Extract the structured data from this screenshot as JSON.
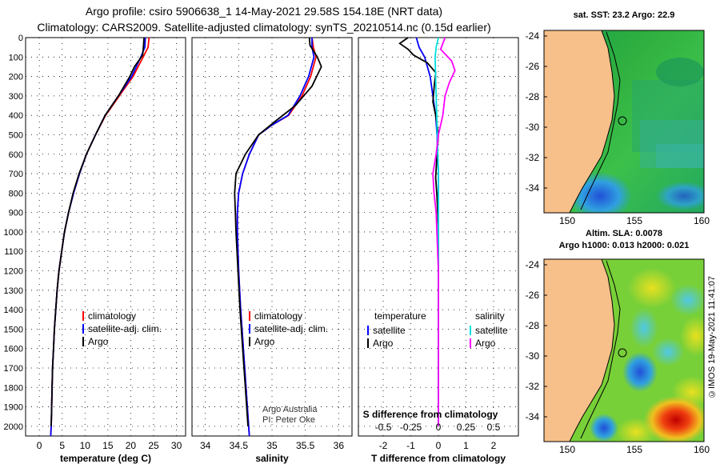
{
  "header": {
    "line1": "Argo profile: csiro 5906638_1 14-May-2021 29.58S 154.18E (NRT data)",
    "line2": "Climatology: CARS2009. Satellite-adjusted climatology: synTS_20210514.nc (0.15d earlier)"
  },
  "map_top": {
    "title": "sat. SST: 23.2 Argo: 22.9",
    "lat_ticks": [
      "-24",
      "-26",
      "-28",
      "-30",
      "-32",
      "-34"
    ],
    "lon_ticks": [
      "150",
      "155",
      "160"
    ]
  },
  "map_bottom": {
    "title1": "Altim. SLA: 0.0078",
    "title2": "Argo h1000: 0.013 h2000: 0.021",
    "lat_ticks": [
      "-24",
      "-26",
      "-28",
      "-30",
      "-32",
      "-34"
    ],
    "lon_ticks": [
      "150",
      "155",
      "160"
    ]
  },
  "stamp": "©IMOS 19-May-2021 11:41:07",
  "credit": {
    "line1": "Argo Australia",
    "line2": "PI: Peter Oke"
  },
  "colors": {
    "climatology": "#ff0000",
    "satellite": "#0000ff",
    "argo": "#000000",
    "sat_salinity": "#00e0e0",
    "argo_salinity": "#ff00ff"
  },
  "chart_data": [
    {
      "type": "line",
      "title": "",
      "xlabel": "temperature (deg C)",
      "ylabel": "",
      "xlim": [
        -3,
        32
      ],
      "ylim": [
        2050,
        0
      ],
      "x_ticks": [
        "0",
        "5",
        "10",
        "15",
        "20",
        "25",
        "30"
      ],
      "y_ticks": [
        "0",
        "100",
        "200",
        "300",
        "400",
        "500",
        "600",
        "700",
        "800",
        "900",
        "1000",
        "1100",
        "1200",
        "1300",
        "1400",
        "1500",
        "1600",
        "1700",
        "1800",
        "1900",
        "2000"
      ],
      "legend": [
        "climatology",
        "satellite-adj. clim.",
        "Argo"
      ],
      "series": [
        {
          "name": "climatology",
          "points": [
            [
              24,
              0
            ],
            [
              23.8,
              50
            ],
            [
              22.7,
              100
            ],
            [
              20.5,
              200
            ],
            [
              17.5,
              300
            ],
            [
              14.5,
              400
            ],
            [
              12.3,
              500
            ],
            [
              10.3,
              600
            ],
            [
              8.8,
              700
            ],
            [
              7.5,
              800
            ],
            [
              6.4,
              900
            ],
            [
              5.5,
              1000
            ],
            [
              4.9,
              1100
            ],
            [
              4.3,
              1200
            ],
            [
              3.9,
              1300
            ],
            [
              3.6,
              1400
            ],
            [
              3.3,
              1500
            ],
            [
              3.1,
              1600
            ],
            [
              2.9,
              1700
            ],
            [
              2.8,
              1800
            ],
            [
              2.7,
              1900
            ],
            [
              2.6,
              2000
            ],
            [
              2.5,
              2050
            ]
          ]
        },
        {
          "name": "satellite-adj. clim.",
          "points": [
            [
              23.2,
              0
            ],
            [
              23.1,
              50
            ],
            [
              22.2,
              100
            ],
            [
              20.2,
              200
            ],
            [
              17.3,
              300
            ],
            [
              14.4,
              400
            ],
            [
              12.3,
              500
            ],
            [
              10.3,
              600
            ],
            [
              8.8,
              700
            ],
            [
              7.5,
              800
            ],
            [
              6.4,
              900
            ],
            [
              5.5,
              1000
            ],
            [
              4.9,
              1100
            ],
            [
              4.3,
              1200
            ],
            [
              3.9,
              1300
            ],
            [
              3.6,
              1400
            ],
            [
              3.3,
              1500
            ],
            [
              3.1,
              1600
            ],
            [
              2.9,
              1700
            ],
            [
              2.8,
              1800
            ],
            [
              2.7,
              1900
            ],
            [
              2.6,
              2000
            ],
            [
              2.5,
              2050
            ]
          ]
        },
        {
          "name": "Argo",
          "points": [
            [
              22.9,
              0
            ],
            [
              22.8,
              40
            ],
            [
              22.6,
              90
            ],
            [
              20.8,
              150
            ],
            [
              19.8,
              200
            ],
            [
              17.3,
              300
            ],
            [
              14.4,
              400
            ],
            [
              12.3,
              500
            ],
            [
              10.3,
              600
            ],
            [
              8.7,
              700
            ],
            [
              7.4,
              800
            ],
            [
              6.4,
              900
            ],
            [
              5.5,
              1000
            ],
            [
              4.9,
              1100
            ],
            [
              4.3,
              1200
            ],
            [
              3.9,
              1300
            ],
            [
              3.6,
              1400
            ],
            [
              3.3,
              1500
            ],
            [
              3.1,
              1600
            ],
            [
              2.9,
              1700
            ],
            [
              2.8,
              1800
            ],
            [
              2.7,
              1900
            ],
            [
              2.6,
              2000
            ]
          ]
        }
      ]
    },
    {
      "type": "line",
      "title": "",
      "xlabel": "salinity",
      "ylabel": "",
      "xlim": [
        33.8,
        36.2
      ],
      "ylim": [
        2050,
        0
      ],
      "x_ticks": [
        "34",
        "34.5",
        "35",
        "35.5",
        "36"
      ],
      "legend": [
        "climatology",
        "satellite-adj. clim.",
        "Argo"
      ],
      "series": [
        {
          "name": "climatology",
          "points": [
            [
              35.6,
              0
            ],
            [
              35.62,
              50
            ],
            [
              35.66,
              100
            ],
            [
              35.58,
              200
            ],
            [
              35.45,
              300
            ],
            [
              35.25,
              400
            ],
            [
              35.0,
              450
            ],
            [
              34.8,
              500
            ],
            [
              34.66,
              600
            ],
            [
              34.56,
              700
            ],
            [
              34.5,
              800
            ],
            [
              34.48,
              900
            ],
            [
              34.48,
              1000
            ],
            [
              34.5,
              1200
            ],
            [
              34.53,
              1400
            ],
            [
              34.57,
              1600
            ],
            [
              34.61,
              1800
            ],
            [
              34.65,
              2000
            ],
            [
              34.66,
              2050
            ]
          ]
        },
        {
          "name": "satellite-adj. clim.",
          "points": [
            [
              35.6,
              0
            ],
            [
              35.6,
              50
            ],
            [
              35.63,
              100
            ],
            [
              35.55,
              200
            ],
            [
              35.42,
              300
            ],
            [
              35.24,
              400
            ],
            [
              35.0,
              450
            ],
            [
              34.8,
              500
            ],
            [
              34.66,
              600
            ],
            [
              34.56,
              700
            ],
            [
              34.5,
              800
            ],
            [
              34.48,
              900
            ],
            [
              34.48,
              1000
            ],
            [
              34.5,
              1200
            ],
            [
              34.53,
              1400
            ],
            [
              34.57,
              1600
            ],
            [
              34.61,
              1800
            ],
            [
              34.65,
              2000
            ],
            [
              34.66,
              2050
            ]
          ]
        },
        {
          "name": "Argo",
          "points": [
            [
              35.56,
              0
            ],
            [
              35.57,
              40
            ],
            [
              35.68,
              100
            ],
            [
              35.74,
              150
            ],
            [
              35.6,
              250
            ],
            [
              35.35,
              350
            ],
            [
              35.05,
              430
            ],
            [
              34.8,
              500
            ],
            [
              34.6,
              600
            ],
            [
              34.46,
              700
            ],
            [
              34.44,
              800
            ],
            [
              34.45,
              900
            ],
            [
              34.46,
              1000
            ],
            [
              34.49,
              1200
            ],
            [
              34.52,
              1400
            ],
            [
              34.56,
              1600
            ],
            [
              34.6,
              1800
            ],
            [
              34.64,
              2000
            ]
          ]
        }
      ]
    },
    {
      "type": "line",
      "title": "",
      "xlabel": "T difference from climatology",
      "ylabel": "",
      "xlim": [
        -2.9,
        2.9
      ],
      "ylim": [
        2050,
        0
      ],
      "x_ticks": [
        "-2",
        "-1",
        "0",
        "1",
        "2"
      ],
      "secondary_axis": {
        "label": "S difference from climatology",
        "ticks": [
          "-0.5",
          "-0.25",
          "0",
          "0.25",
          "0.5"
        ],
        "xlim": [
          -0.725,
          0.725
        ]
      },
      "legend": {
        "temperature": [
          "satellite",
          "Argo"
        ],
        "salinity": [
          "satellite",
          "Argo"
        ]
      },
      "legend_titles": {
        "temperature": "temperature",
        "salinity": "salinity"
      },
      "series": [
        {
          "name": "T satellite",
          "axis": "T",
          "points": [
            [
              -0.8,
              0
            ],
            [
              -0.7,
              50
            ],
            [
              -0.5,
              100
            ],
            [
              -0.3,
              200
            ],
            [
              -0.2,
              300
            ],
            [
              -0.1,
              400
            ],
            [
              -0.05,
              500
            ],
            [
              0,
              700
            ],
            [
              0,
              2000
            ]
          ]
        },
        {
          "name": "T Argo",
          "axis": "T",
          "points": [
            [
              -1.1,
              0
            ],
            [
              -1.4,
              30
            ],
            [
              -1.1,
              60
            ],
            [
              -0.9,
              90
            ],
            [
              -0.4,
              130
            ],
            [
              -0.1,
              180
            ],
            [
              -0.15,
              250
            ],
            [
              -0.2,
              330
            ],
            [
              -0.1,
              400
            ],
            [
              0,
              500
            ],
            [
              -0.05,
              600
            ],
            [
              -0.1,
              720
            ],
            [
              -0.05,
              820
            ],
            [
              0,
              1000
            ],
            [
              0,
              2000
            ]
          ]
        },
        {
          "name": "S satellite",
          "axis": "S",
          "points": [
            [
              0,
              0
            ],
            [
              -0.02,
              50
            ],
            [
              -0.03,
              100
            ],
            [
              -0.02,
              300
            ],
            [
              -0.01,
              500
            ],
            [
              0,
              700
            ],
            [
              0,
              2000
            ]
          ]
        },
        {
          "name": "S Argo",
          "axis": "S",
          "points": [
            [
              0.06,
              0
            ],
            [
              0.02,
              60
            ],
            [
              0.12,
              120
            ],
            [
              0.15,
              170
            ],
            [
              0.1,
              230
            ],
            [
              0.06,
              300
            ],
            [
              0.04,
              400
            ],
            [
              0,
              500
            ],
            [
              -0.02,
              600
            ],
            [
              -0.05,
              700
            ],
            [
              -0.04,
              800
            ],
            [
              -0.02,
              900
            ],
            [
              0,
              1200
            ],
            [
              0,
              2000
            ]
          ]
        }
      ]
    }
  ]
}
